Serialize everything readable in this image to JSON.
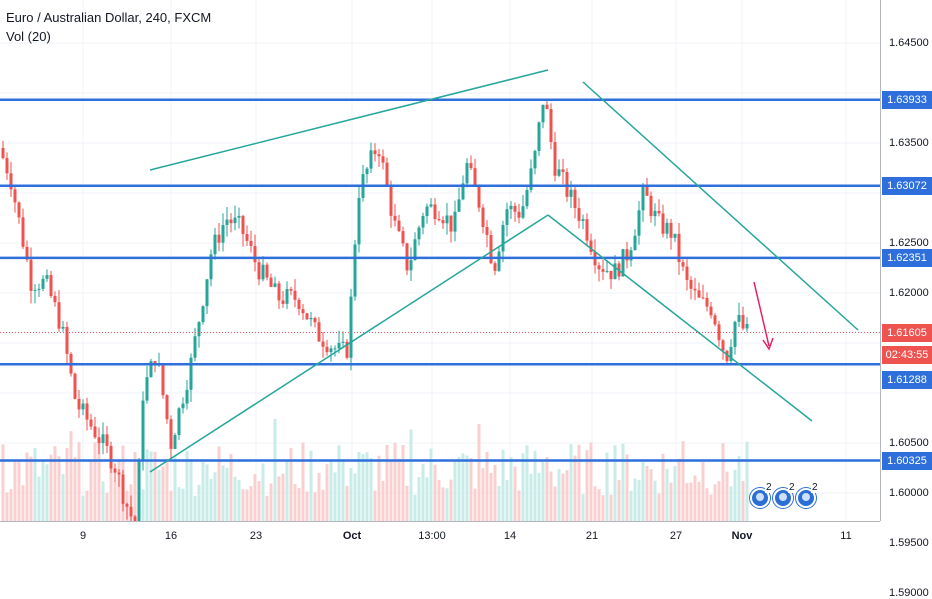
{
  "symbol": {
    "title": "Euro / Australian Dollar, 240, FXCM",
    "volume_label": "Vol (20)"
  },
  "colors": {
    "level_line": "#2f6fdc",
    "trend_line": "#26a69a",
    "up_candle": "#26a69a",
    "down_candle": "#ef5350",
    "current_price_line": "#ef5350",
    "arrow": "#e91e63",
    "volume_up": "#c9ece8",
    "volume_down": "#f8d0d0"
  },
  "price_axis": {
    "ticks": [
      "1.64500",
      "1.63500",
      "1.62500",
      "1.62000",
      "1.60500",
      "1.60000",
      "1.59500",
      "1.59000"
    ],
    "tags": [
      {
        "label": "1.63933",
        "kind": "level"
      },
      {
        "label": "1.63072",
        "kind": "level"
      },
      {
        "label": "1.62351",
        "kind": "level"
      },
      {
        "label": "1.61605",
        "kind": "last"
      },
      {
        "label": "02:43:55",
        "kind": "timer"
      },
      {
        "label": "1.61288",
        "kind": "level"
      },
      {
        "label": "1.60325",
        "kind": "level"
      }
    ]
  },
  "time_axis": {
    "ticks": [
      {
        "label": "9",
        "bold": false
      },
      {
        "label": "16",
        "bold": false
      },
      {
        "label": "23",
        "bold": false
      },
      {
        "label": "Oct",
        "bold": true
      },
      {
        "label": "13:00",
        "bold": false
      },
      {
        "label": "14",
        "bold": false
      },
      {
        "label": "21",
        "bold": false
      },
      {
        "label": "27",
        "bold": false
      },
      {
        "label": "Nov",
        "bold": true
      },
      {
        "label": "11",
        "bold": false
      }
    ]
  },
  "events": [
    {
      "count": "2",
      "icon": "calendar-event-icon"
    },
    {
      "count": "2",
      "icon": "calendar-event-icon"
    },
    {
      "count": "2",
      "icon": "calendar-event-icon"
    }
  ],
  "chart_data": {
    "type": "candlestick",
    "price_scale_ticks": [
      1.645,
      1.635,
      1.625,
      1.62,
      1.605,
      1.6,
      1.595,
      1.59
    ],
    "horizontal_levels": [
      1.63933,
      1.63072,
      1.62351,
      1.61288,
      1.60325
    ],
    "last_price": 1.61605,
    "candle_count": 190,
    "annotation": "downward arrow projecting lower price"
  }
}
